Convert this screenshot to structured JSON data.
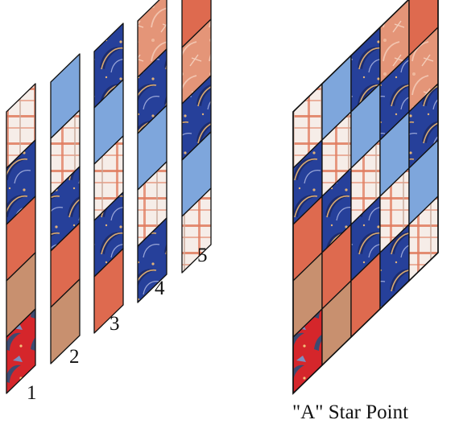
{
  "colors": {
    "red": "#d5262b",
    "salmon": "#de6a4f",
    "tan": "#c8906f",
    "light_blue": "#7ea6dc",
    "navy": "#26409a",
    "plaid_bg": "#f6ede8",
    "plaid_line": "#e07b5d",
    "peach": "#e49578",
    "accent": "#d38b6f",
    "outline": "#111111"
  },
  "fabrics_legend": [
    "red-print",
    "salmon",
    "tan",
    "light-blue",
    "navy-print",
    "plaid",
    "peach-print"
  ],
  "strips": [
    {
      "label": "1",
      "cells": [
        "plaid",
        "navy-print",
        "salmon",
        "tan",
        "red-print"
      ]
    },
    {
      "label": "2",
      "cells": [
        "light-blue",
        "plaid",
        "navy-print",
        "salmon",
        "tan"
      ]
    },
    {
      "label": "3",
      "cells": [
        "navy-print",
        "light-blue",
        "plaid",
        "navy-print",
        "salmon"
      ]
    },
    {
      "label": "4",
      "cells": [
        "peach-print",
        "navy-print",
        "light-blue",
        "plaid",
        "navy-print"
      ]
    },
    {
      "label": "5",
      "cells": [
        "salmon",
        "peach-print",
        "navy-print",
        "light-blue",
        "plaid"
      ]
    }
  ],
  "caption": "\"A\" Star Point"
}
